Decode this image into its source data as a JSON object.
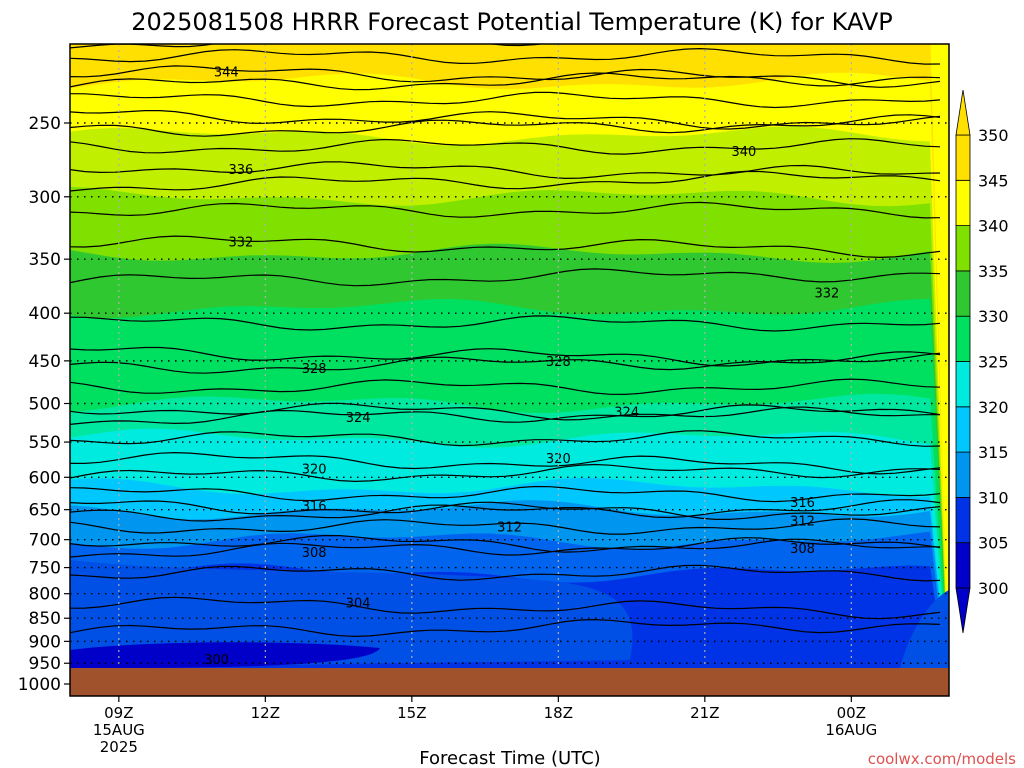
{
  "chart_data": {
    "type": "contour",
    "title": "2025081508 HRRR Forecast Potential Temperature (K) for KAVP",
    "xlabel": "Forecast Time (UTC)",
    "ylabel": "",
    "x_unit": "hours since 2025-08-15 08Z",
    "xlim": [
      8,
      26
    ],
    "x_ticks": [
      {
        "x": 9,
        "lines": [
          "09Z",
          "15AUG",
          "2025"
        ]
      },
      {
        "x": 12,
        "lines": [
          "12Z"
        ]
      },
      {
        "x": 15,
        "lines": [
          "15Z"
        ]
      },
      {
        "x": 18,
        "lines": [
          "18Z"
        ]
      },
      {
        "x": 21,
        "lines": [
          "21Z"
        ]
      },
      {
        "x": 24,
        "lines": [
          "00Z",
          "16AUG"
        ]
      }
    ],
    "y_ticks": [
      250,
      300,
      350,
      400,
      450,
      500,
      550,
      600,
      650,
      700,
      750,
      800,
      850,
      900,
      950,
      1000
    ],
    "ylim": [
      200,
      1010
    ],
    "y_scale": "log-pressure (inverted)",
    "colorbar": {
      "levels": [
        300,
        305,
        310,
        315,
        320,
        325,
        330,
        335,
        340,
        345,
        350
      ],
      "colors": [
        "#0000c8",
        "#0032e6",
        "#0064ee",
        "#0096f0",
        "#00c8ff",
        "#00ebe0",
        "#00e8a0",
        "#00e060",
        "#30c830",
        "#80e000",
        "#c0f000",
        "#ffff00",
        "#ffe000"
      ]
    },
    "contour_labels": [
      {
        "text": "344",
        "x": 11.2,
        "p": 220
      },
      {
        "text": "340",
        "x": 21.8,
        "p": 268
      },
      {
        "text": "336",
        "x": 11.5,
        "p": 280
      },
      {
        "text": "332",
        "x": 11.5,
        "p": 335
      },
      {
        "text": "332",
        "x": 23.5,
        "p": 380
      },
      {
        "text": "328",
        "x": 13.0,
        "p": 458
      },
      {
        "text": "328",
        "x": 18.0,
        "p": 450
      },
      {
        "text": "324",
        "x": 13.9,
        "p": 517
      },
      {
        "text": "324",
        "x": 19.4,
        "p": 510
      },
      {
        "text": "320",
        "x": 13.0,
        "p": 587
      },
      {
        "text": "320",
        "x": 18.0,
        "p": 572
      },
      {
        "text": "316",
        "x": 13.0,
        "p": 643
      },
      {
        "text": "316",
        "x": 23.0,
        "p": 638
      },
      {
        "text": "312",
        "x": 17.0,
        "p": 678
      },
      {
        "text": "312",
        "x": 23.0,
        "p": 668
      },
      {
        "text": "308",
        "x": 13.0,
        "p": 722
      },
      {
        "text": "308",
        "x": 23.0,
        "p": 715
      },
      {
        "text": "304",
        "x": 13.9,
        "p": 818
      },
      {
        "text": "300",
        "x": 11.0,
        "p": 940
      }
    ],
    "terrain_color": "#a0522d",
    "terrain_top_p": 995
  },
  "footer": {
    "credit": "coolwx.com/models"
  }
}
